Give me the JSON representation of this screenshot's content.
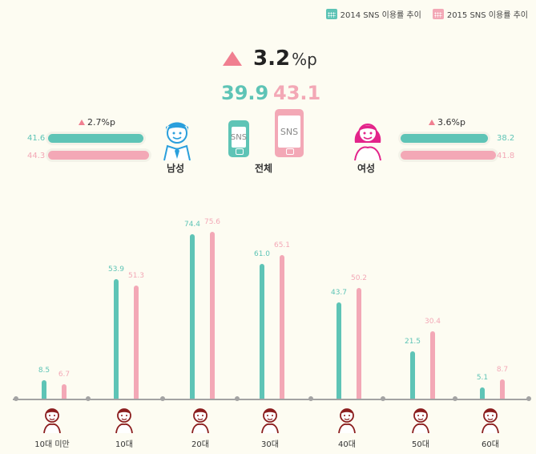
{
  "colors": {
    "y2014": "#5ec4b6",
    "y2015": "#f3a8b6",
    "accent": "#f07f90",
    "man": "#2a9fdc",
    "woman": "#e3248a",
    "person": "#8b1e1e"
  },
  "legend": {
    "y2014": "2014 SNS 이용률 추이",
    "y2015": "2015 SNS 이용률 추이"
  },
  "summary": {
    "change_value": "3.2",
    "change_unit": "%p",
    "total_2014": "39.9",
    "total_2015": "43.1",
    "phone_text": "SNS",
    "total_label": "전체"
  },
  "male": {
    "label": "남성",
    "change": "2.7%p",
    "v2014": 41.6,
    "v2015": 44.3,
    "v2014_text": "41.6",
    "v2015_text": "44.3"
  },
  "female": {
    "label": "여성",
    "change": "3.6%p",
    "v2014": 38.2,
    "v2015": 41.8,
    "v2014_text": "38.2",
    "v2015_text": "41.8"
  },
  "chart_data": {
    "type": "bar",
    "categories": [
      "10대 미만",
      "10대",
      "20대",
      "30대",
      "40대",
      "50대",
      "60대"
    ],
    "series": [
      {
        "name": "2014 SNS 이용률 추이",
        "values": [
          8.5,
          53.9,
          74.4,
          61.0,
          43.7,
          21.5,
          5.1
        ]
      },
      {
        "name": "2015 SNS 이용률 추이",
        "values": [
          6.7,
          51.3,
          75.6,
          65.1,
          50.2,
          30.4,
          8.7
        ]
      }
    ],
    "value_labels": [
      [
        "8.5",
        "53.9",
        "74.4",
        "61.0",
        "43.7",
        "21.5",
        "5.1"
      ],
      [
        "6.7",
        "51.3",
        "75.6",
        "65.1",
        "50.2",
        "30.4",
        "8.7"
      ]
    ],
    "ylim": [
      0,
      80
    ],
    "grid": false
  }
}
